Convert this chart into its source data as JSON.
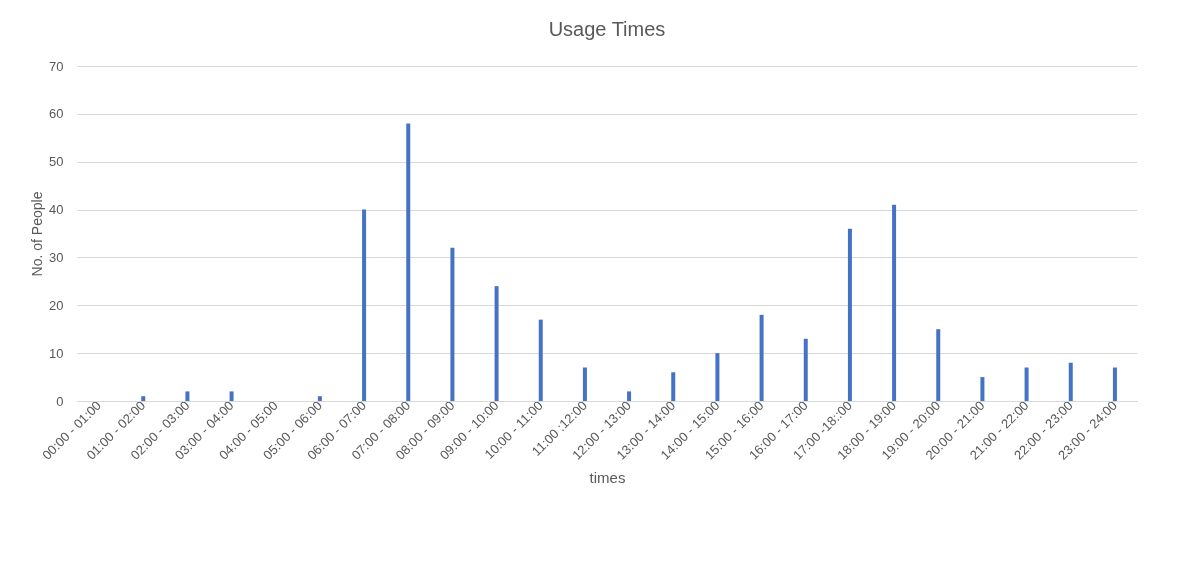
{
  "chart_data": {
    "type": "bar",
    "title": "Usage Times",
    "xlabel": "times",
    "ylabel": "No. of People",
    "categories": [
      "00:00 - 01:00",
      "01:00 - 02:00",
      "02:00 - 03:00",
      "03:00 - 04:00",
      "04:00 - 05:00",
      "05:00 - 06:00",
      "06:00 - 07:00",
      "07:00 - 08:00",
      "08:00 - 09:00",
      "09:00 - 10:00",
      "10:00 - 11:00",
      "11:00 :12:00",
      "12:00 - 13:00",
      "13:00 - 14:00",
      "14:00 - 15:00",
      "15:00 - 16:00",
      "16:00 - 17:00",
      "17:00 -18::00",
      "18:00 - 19:00",
      "19:00 - 20:00",
      "20:00 - 21:00",
      "21:00 - 22:00",
      "22:00 - 23:00",
      "23:00 - 24:00"
    ],
    "values": [
      0,
      1,
      2,
      2,
      0,
      1,
      40,
      58,
      32,
      24,
      17,
      7,
      2,
      6,
      10,
      18,
      13,
      36,
      41,
      15,
      5,
      7,
      8,
      7
    ],
    "color": "#4472c4",
    "ylim": [
      0,
      70
    ],
    "yticks": [
      0,
      10,
      20,
      30,
      40,
      50,
      60,
      70
    ],
    "grid": "y"
  }
}
